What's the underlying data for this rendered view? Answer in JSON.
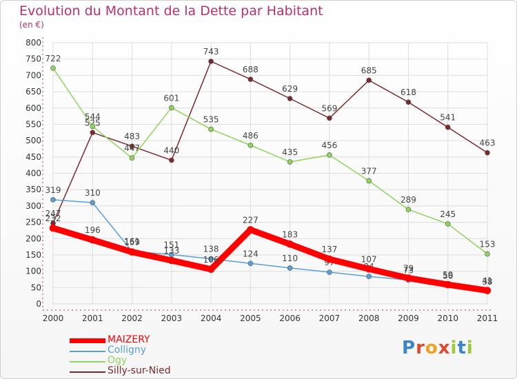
{
  "header": {
    "title": "Evolution du Montant de la Dette par Habitant",
    "subtitle": "(en €)"
  },
  "logo": {
    "text": "Proxiti",
    "letter_colors": [
      "#3a86c8",
      "#e0492b",
      "#f0a020",
      "#e0492b",
      "#9cc83a",
      "#3a86c8",
      "#9cc83a"
    ]
  },
  "colors": {
    "axis": "#b5306f",
    "grid": "#dddddd",
    "tick_text": "#333333",
    "value_label": "#444444"
  },
  "chart_data": {
    "type": "line",
    "title": "Evolution du Montant de la Dette par Habitant",
    "subtitle": "(en €)",
    "x": [
      "2000",
      "2001",
      "2002",
      "2003",
      "2004",
      "2005",
      "2006",
      "2007",
      "2008",
      "2009",
      "2010",
      "2011"
    ],
    "ylim": [
      0,
      800
    ],
    "yticks": [
      0,
      50,
      100,
      150,
      200,
      250,
      300,
      350,
      400,
      450,
      500,
      550,
      600,
      650,
      700,
      750,
      800
    ],
    "grid": "horizontal",
    "legend_position": "bottom-left",
    "series": [
      {
        "name": "Silly-sur-Nied",
        "color": "#7a2a2a",
        "values": [
          247,
          525,
          483,
          440,
          743,
          688,
          629,
          569,
          685,
          618,
          541,
          463
        ]
      },
      {
        "name": "Ogy",
        "color": "#8fd45c",
        "values": [
          722,
          544,
          447,
          601,
          535,
          486,
          435,
          456,
          377,
          289,
          245,
          153
        ]
      },
      {
        "name": "Colligny",
        "color": "#5a9fd6",
        "values": [
          319,
          310,
          161,
          151,
          138,
          124,
          110,
          97,
          84,
          73,
          56,
          38
        ]
      },
      {
        "name": "MAIZERY",
        "color": "#ff0000",
        "values": [
          232,
          196,
          159,
          133,
          106,
          227,
          183,
          137,
          107,
          79,
          59,
          41
        ]
      }
    ]
  },
  "legend": {
    "items": [
      {
        "label": "MAIZERY",
        "color": "#ff0000"
      },
      {
        "label": "Colligny",
        "color": "#5a9fd6"
      },
      {
        "label": "Ogy",
        "color": "#8fd45c"
      },
      {
        "label": "Silly-sur-Nied",
        "color": "#7a2a2a"
      }
    ]
  }
}
